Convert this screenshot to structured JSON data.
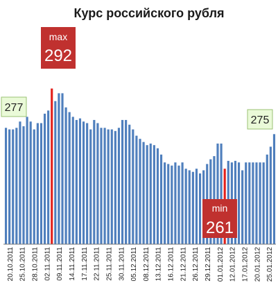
{
  "chart_data": {
    "type": "bar",
    "title": "Курс российского рубля",
    "xlabel": "",
    "ylabel": "",
    "ylim": [
      240,
      300
    ],
    "grid": false,
    "colors": {
      "bar": "#4f7fbd",
      "highlight": "#e3211c",
      "callout": "#c0312f",
      "label_box": "#eafad8",
      "label_border": "#9bc174"
    },
    "values": [
      277,
      276.5,
      276.5,
      277,
      279,
      277.5,
      280.5,
      279,
      276.5,
      278.5,
      278.5,
      281.5,
      282.5,
      289.5,
      285.5,
      288,
      288,
      283.5,
      282,
      280.5,
      279.5,
      280,
      279,
      278.5,
      276.5,
      279.5,
      278.5,
      277,
      277,
      276.5,
      276.5,
      276,
      277,
      279.5,
      279.5,
      278,
      276.5,
      274.5,
      273.5,
      272.5,
      271.5,
      272,
      271.5,
      270.5,
      268.5,
      266,
      265.5,
      265,
      266,
      265,
      266,
      264,
      263.5,
      263,
      264,
      262.5,
      263.5,
      265.5,
      267,
      268,
      272,
      272,
      264,
      266.5,
      266,
      266.5,
      266,
      263.5,
      266,
      266,
      266,
      266,
      266,
      266,
      268.5,
      271,
      275
    ],
    "highlight_indices": [
      13,
      62
    ],
    "tick_labels": [
      "20.10.2011",
      "25.10.2011",
      "28.10.2011",
      "02.11.2011",
      "09.11.2011",
      "14.11.2011",
      "17.11.2011",
      "22.11.2011",
      "25.11.2011",
      "30.11.2011",
      "05.12.2011",
      "08.12.2011",
      "13.12.2011",
      "16.12.2011",
      "21.12.2011",
      "26.12.2011",
      "29.12.2011",
      "01.01.2012",
      "12.01.2012",
      "17.01.2012",
      "20.01.2012",
      "25.01.2012"
    ],
    "annotations": {
      "first": {
        "value": "277"
      },
      "last": {
        "value": "275"
      },
      "max": {
        "label": "max",
        "value": "292"
      },
      "min": {
        "label": "min",
        "value": "261"
      }
    }
  }
}
